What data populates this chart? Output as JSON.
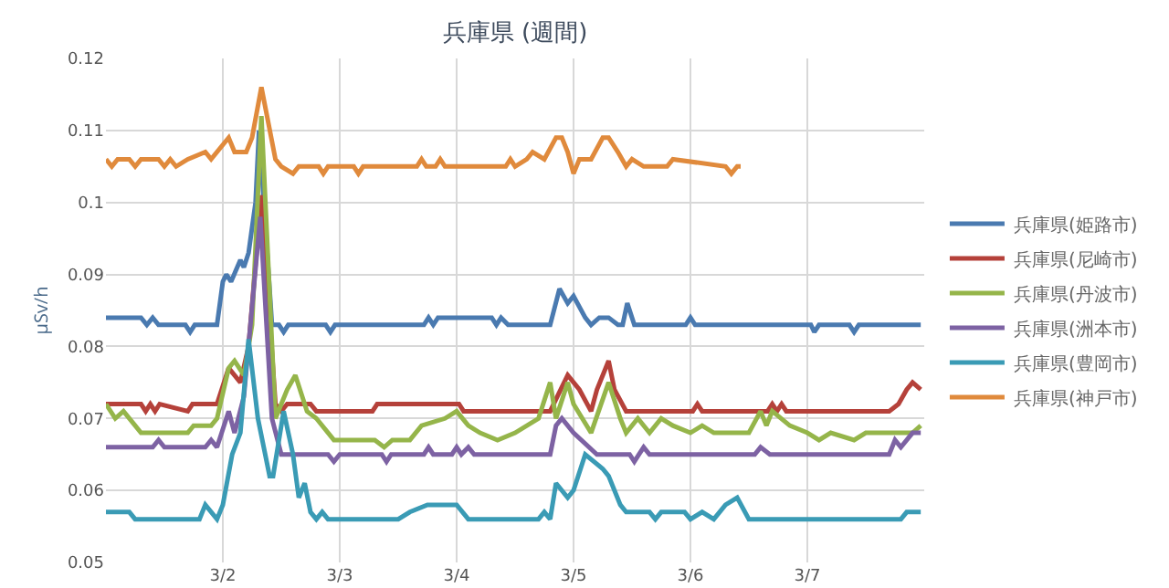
{
  "chart_data": {
    "type": "line",
    "title": "兵庫県 (週間)",
    "ylabel": "μSv/h",
    "xlim": [
      "--03-01",
      "--03-08"
    ],
    "xticks": [
      {
        "value": "--03-02",
        "label": "3/2"
      },
      {
        "value": "--03-03",
        "label": "3/3"
      },
      {
        "value": "--03-04",
        "label": "3/4"
      },
      {
        "value": "--03-05",
        "label": "3/5"
      },
      {
        "value": "--03-06",
        "label": "3/6"
      },
      {
        "value": "--03-07",
        "label": "3/7"
      }
    ],
    "ylim": [
      0.05,
      0.12
    ],
    "yticks": [
      0.05,
      0.06,
      0.07,
      0.08,
      0.09,
      0.1,
      0.11,
      0.12
    ],
    "grid": true,
    "legend": "right",
    "line_style": "solid",
    "series": [
      {
        "name": "兵庫県(姫路市)",
        "color": "#4a7ab0",
        "x": [
          "--03-01T00:00",
          "--03-01T07:12",
          "--03-01T08:24",
          "--03-01T09:36",
          "--03-01T10:48",
          "--03-01T16:19",
          "--03-01T17:17",
          "--03-01T18:14",
          "--03-01T22:48",
          "--03-02T00:00",
          "--03-02T00:43",
          "--03-02T01:41",
          "--03-02T03:36",
          "--03-02T04:19",
          "--03-02T05:17",
          "--03-02T06:43",
          "--03-02T07:26",
          "--03-02T10:05",
          "--03-02T11:31",
          "--03-02T12:29",
          "--03-02T13:26",
          "--03-02T21:07",
          "--03-02T22:05",
          "--03-02T23:02",
          "--03-03T17:17",
          "--03-03T18:14",
          "--03-03T19:12",
          "--03-03T20:10",
          "--03-04T07:12",
          "--03-04T08:10",
          "--03-04T09:07",
          "--03-04T10:34",
          "--03-04T19:12",
          "--03-04T21:07",
          "--03-04T22:48",
          "--03-05T00:00",
          "--03-05T02:24",
          "--03-05T03:36",
          "--03-05T05:17",
          "--03-05T07:12",
          "--03-05T09:07",
          "--03-05T10:05",
          "--03-05T11:02",
          "--03-05T12:29",
          "--03-05T23:02",
          "--03-06T00:00",
          "--03-06T00:58",
          "--03-07T00:43",
          "--03-07T01:26",
          "--03-07T02:24",
          "--03-07T08:38",
          "--03-07T09:36",
          "--03-07T10:34",
          "--03-07T23:17"
        ],
        "values": [
          0.084,
          0.084,
          0.083,
          0.084,
          0.083,
          0.083,
          0.082,
          0.083,
          0.083,
          0.089,
          0.09,
          0.089,
          0.092,
          0.091,
          0.093,
          0.1,
          0.11,
          0.083,
          0.083,
          0.082,
          0.083,
          0.083,
          0.082,
          0.083,
          0.083,
          0.084,
          0.083,
          0.084,
          0.084,
          0.083,
          0.084,
          0.083,
          0.083,
          0.088,
          0.086,
          0.087,
          0.084,
          0.083,
          0.084,
          0.084,
          0.083,
          0.083,
          0.086,
          0.083,
          0.083,
          0.084,
          0.083,
          0.083,
          0.082,
          0.083,
          0.083,
          0.082,
          0.083,
          0.083
        ]
      },
      {
        "name": "兵庫県(尼崎市)",
        "color": "#b5413a",
        "x": [
          "--03-01T00:00",
          "--03-01T07:12",
          "--03-01T08:10",
          "--03-01T09:07",
          "--03-01T10:05",
          "--03-01T11:02",
          "--03-01T16:48",
          "--03-01T17:46",
          "--03-01T18:43",
          "--03-01T22:48",
          "--03-02T01:12",
          "--03-02T03:36",
          "--03-02T05:17",
          "--03-02T07:55",
          "--03-02T10:48",
          "--03-02T12:00",
          "--03-02T13:12",
          "--03-02T18:00",
          "--03-02T19:12",
          "--03-03T06:43",
          "--03-03T07:41",
          "--03-04T00:29",
          "--03-04T01:26",
          "--03-04T19:12",
          "--03-04T22:48",
          "--03-05T01:12",
          "--03-05T03:36",
          "--03-05T04:48",
          "--03-05T07:12",
          "--03-05T08:24",
          "--03-05T10:48",
          "--03-06T00:29",
          "--03-06T01:26",
          "--03-06T02:24",
          "--03-06T15:50",
          "--03-06T16:48",
          "--03-06T17:46",
          "--03-06T18:43",
          "--03-06T19:41",
          "--03-07T16:48",
          "--03-07T18:43",
          "--03-07T20:24",
          "--03-07T21:36",
          "--03-07T23:17"
        ],
        "values": [
          0.072,
          0.072,
          0.071,
          0.072,
          0.071,
          0.072,
          0.071,
          0.072,
          0.072,
          0.072,
          0.077,
          0.075,
          0.08,
          0.101,
          0.072,
          0.071,
          0.072,
          0.072,
          0.071,
          0.071,
          0.072,
          0.072,
          0.071,
          0.071,
          0.076,
          0.074,
          0.071,
          0.074,
          0.078,
          0.074,
          0.071,
          0.071,
          0.072,
          0.071,
          0.071,
          0.072,
          0.071,
          0.072,
          0.071,
          0.071,
          0.072,
          0.074,
          0.075,
          0.074
        ]
      },
      {
        "name": "兵庫県(丹波市)",
        "color": "#95b54a",
        "x": [
          "--03-01T00:00",
          "--03-01T01:55",
          "--03-01T03:36",
          "--03-01T06:00",
          "--03-01T07:12",
          "--03-01T16:48",
          "--03-01T18:00",
          "--03-01T21:36",
          "--03-01T22:48",
          "--03-02T01:12",
          "--03-02T02:24",
          "--03-02T04:19",
          "--03-02T06:00",
          "--03-02T07:55",
          "--03-02T10:48",
          "--03-02T13:12",
          "--03-02T14:53",
          "--03-02T17:17",
          "--03-02T19:12",
          "--03-02T22:48",
          "--03-03T07:12",
          "--03-03T09:07",
          "--03-03T10:48",
          "--03-03T14:24",
          "--03-03T16:48",
          "--03-03T21:36",
          "--03-04T00:00",
          "--03-04T02:24",
          "--03-04T04:48",
          "--03-04T08:24",
          "--03-04T12:00",
          "--03-04T16:48",
          "--03-04T19:12",
          "--03-04T20:24",
          "--03-04T22:48",
          "--03-05T00:00",
          "--03-05T03:36",
          "--03-05T07:12",
          "--03-05T09:36",
          "--03-05T10:48",
          "--03-05T13:12",
          "--03-05T15:36",
          "--03-05T18:00",
          "--03-05T20:24",
          "--03-06T00:00",
          "--03-06T02:24",
          "--03-06T04:48",
          "--03-06T12:00",
          "--03-06T14:24",
          "--03-06T15:36",
          "--03-06T16:48",
          "--03-06T20:24",
          "--03-07T00:00",
          "--03-07T02:24",
          "--03-07T04:48",
          "--03-07T09:36",
          "--03-07T12:00",
          "--03-07T21:36",
          "--03-07T23:17"
        ],
        "values": [
          0.072,
          0.07,
          0.071,
          0.069,
          0.068,
          0.068,
          0.069,
          0.069,
          0.07,
          0.077,
          0.078,
          0.076,
          0.083,
          0.112,
          0.07,
          0.074,
          0.076,
          0.071,
          0.07,
          0.067,
          0.067,
          0.066,
          0.067,
          0.067,
          0.069,
          0.07,
          0.071,
          0.069,
          0.068,
          0.067,
          0.068,
          0.07,
          0.075,
          0.07,
          0.075,
          0.072,
          0.068,
          0.075,
          0.07,
          0.068,
          0.07,
          0.068,
          0.07,
          0.069,
          0.068,
          0.069,
          0.068,
          0.068,
          0.071,
          0.069,
          0.071,
          0.069,
          0.068,
          0.067,
          0.068,
          0.067,
          0.068,
          0.068,
          0.069
        ]
      },
      {
        "name": "兵庫県(洲本市)",
        "color": "#7d62a3",
        "x": [
          "--03-01T00:00",
          "--03-01T09:36",
          "--03-01T10:48",
          "--03-01T12:00",
          "--03-01T20:24",
          "--03-01T21:36",
          "--03-01T22:48",
          "--03-02T01:12",
          "--03-02T02:24",
          "--03-02T04:19",
          "--03-02T07:41",
          "--03-02T10:05",
          "--03-02T12:00",
          "--03-02T21:36",
          "--03-02T22:48",
          "--03-03T00:00",
          "--03-03T08:38",
          "--03-03T09:36",
          "--03-03T10:34",
          "--03-03T17:17",
          "--03-03T18:14",
          "--03-03T19:12",
          "--03-03T23:02",
          "--03-04T00:00",
          "--03-04T00:58",
          "--03-04T02:24",
          "--03-04T03:36",
          "--03-04T19:12",
          "--03-04T20:24",
          "--03-04T21:36",
          "--03-05T00:00",
          "--03-05T04:48",
          "--03-05T11:31",
          "--03-05T12:29",
          "--03-05T13:26",
          "--03-05T14:24",
          "--03-05T15:36",
          "--03-06T13:12",
          "--03-06T14:24",
          "--03-06T16:19",
          "--03-07T16:48",
          "--03-07T18:00",
          "--03-07T19:12",
          "--03-07T21:36",
          "--03-07T23:17"
        ],
        "values": [
          0.066,
          0.066,
          0.067,
          0.066,
          0.066,
          0.067,
          0.066,
          0.071,
          0.068,
          0.073,
          0.098,
          0.07,
          0.065,
          0.065,
          0.064,
          0.065,
          0.065,
          0.064,
          0.065,
          0.065,
          0.066,
          0.065,
          0.065,
          0.066,
          0.065,
          0.066,
          0.065,
          0.065,
          0.069,
          0.07,
          0.068,
          0.065,
          0.065,
          0.064,
          0.065,
          0.066,
          0.065,
          0.065,
          0.066,
          0.065,
          0.065,
          0.067,
          0.066,
          0.068,
          0.068
        ]
      },
      {
        "name": "兵庫県(豊岡市)",
        "color": "#3a9bb5",
        "x": [
          "--03-01T00:00",
          "--03-01T04:48",
          "--03-01T06:00",
          "--03-01T19:12",
          "--03-01T20:24",
          "--03-01T22:48",
          "--03-02T00:00",
          "--03-02T01:55",
          "--03-02T03:36",
          "--03-02T05:17",
          "--03-02T07:12",
          "--03-02T09:36",
          "--03-02T10:19",
          "--03-02T12:29",
          "--03-02T14:24",
          "--03-02T15:36",
          "--03-02T16:48",
          "--03-02T18:00",
          "--03-02T19:12",
          "--03-02T20:24",
          "--03-02T21:36",
          "--03-03T12:00",
          "--03-03T14:24",
          "--03-03T18:00",
          "--03-04T00:00",
          "--03-04T02:24",
          "--03-04T16:48",
          "--03-04T18:00",
          "--03-04T19:12",
          "--03-04T20:24",
          "--03-04T22:48",
          "--03-05T00:00",
          "--03-05T02:24",
          "--03-05T06:00",
          "--03-05T07:12",
          "--03-05T09:36",
          "--03-05T10:48",
          "--03-05T15:36",
          "--03-05T16:48",
          "--03-05T18:00",
          "--03-05T22:48",
          "--03-06T00:00",
          "--03-06T02:24",
          "--03-06T04:48",
          "--03-06T07:12",
          "--03-06T09:36",
          "--03-06T12:00",
          "--03-07T19:12",
          "--03-07T20:24",
          "--03-07T23:17"
        ],
        "values": [
          0.057,
          0.057,
          0.056,
          0.056,
          0.058,
          0.056,
          0.058,
          0.065,
          0.068,
          0.081,
          0.07,
          0.062,
          0.062,
          0.071,
          0.065,
          0.059,
          0.061,
          0.057,
          0.056,
          0.057,
          0.056,
          0.056,
          0.057,
          0.058,
          0.058,
          0.056,
          0.056,
          0.057,
          0.056,
          0.061,
          0.059,
          0.06,
          0.065,
          0.063,
          0.062,
          0.058,
          0.057,
          0.057,
          0.056,
          0.057,
          0.057,
          0.056,
          0.057,
          0.056,
          0.058,
          0.059,
          0.056,
          0.056,
          0.057,
          0.057
        ]
      },
      {
        "name": "兵庫県(神戸市)",
        "color": "#e08a3c",
        "x": [
          "--03-01T00:00",
          "--03-01T01:12",
          "--03-01T02:24",
          "--03-01T04:48",
          "--03-01T06:00",
          "--03-01T07:12",
          "--03-01T10:48",
          "--03-01T12:00",
          "--03-01T13:12",
          "--03-01T14:24",
          "--03-01T16:48",
          "--03-01T20:24",
          "--03-01T21:36",
          "--03-02T01:12",
          "--03-02T02:24",
          "--03-02T04:48",
          "--03-02T06:00",
          "--03-02T07:55",
          "--03-02T10:48",
          "--03-02T12:00",
          "--03-02T14:24",
          "--03-02T15:36",
          "--03-02T19:41",
          "--03-02T20:38",
          "--03-02T21:36",
          "--03-03T02:53",
          "--03-03T03:50",
          "--03-03T04:48",
          "--03-03T15:50",
          "--03-03T16:48",
          "--03-03T17:46",
          "--03-03T19:41",
          "--03-03T20:38",
          "--03-03T21:36",
          "--03-04T10:05",
          "--03-04T11:02",
          "--03-04T12:00",
          "--03-04T14:24",
          "--03-04T15:36",
          "--03-04T18:00",
          "--03-04T20:24",
          "--03-04T21:36",
          "--03-04T22:48",
          "--03-05T00:00",
          "--03-05T01:12",
          "--03-05T03:36",
          "--03-05T06:00",
          "--03-05T07:12",
          "--03-05T09:07",
          "--03-05T10:48",
          "--03-05T12:00",
          "--03-05T14:24",
          "--03-05T19:12",
          "--03-05T20:24",
          "--03-06T07:12",
          "--03-06T08:24",
          "--03-06T09:36",
          "--03-06T10:19"
        ],
        "values": [
          0.106,
          0.105,
          0.106,
          0.106,
          0.105,
          0.106,
          0.106,
          0.105,
          0.106,
          0.105,
          0.106,
          0.107,
          0.106,
          0.109,
          0.107,
          0.107,
          0.109,
          0.116,
          0.106,
          0.105,
          0.104,
          0.105,
          0.105,
          0.104,
          0.105,
          0.105,
          0.104,
          0.105,
          0.105,
          0.106,
          0.105,
          0.105,
          0.106,
          0.105,
          0.105,
          0.106,
          0.105,
          0.106,
          0.107,
          0.106,
          0.109,
          0.109,
          0.107,
          0.104,
          0.106,
          0.106,
          0.109,
          0.109,
          0.107,
          0.105,
          0.106,
          0.105,
          0.105,
          0.106,
          0.105,
          0.104,
          0.105,
          0.105
        ]
      }
    ]
  }
}
